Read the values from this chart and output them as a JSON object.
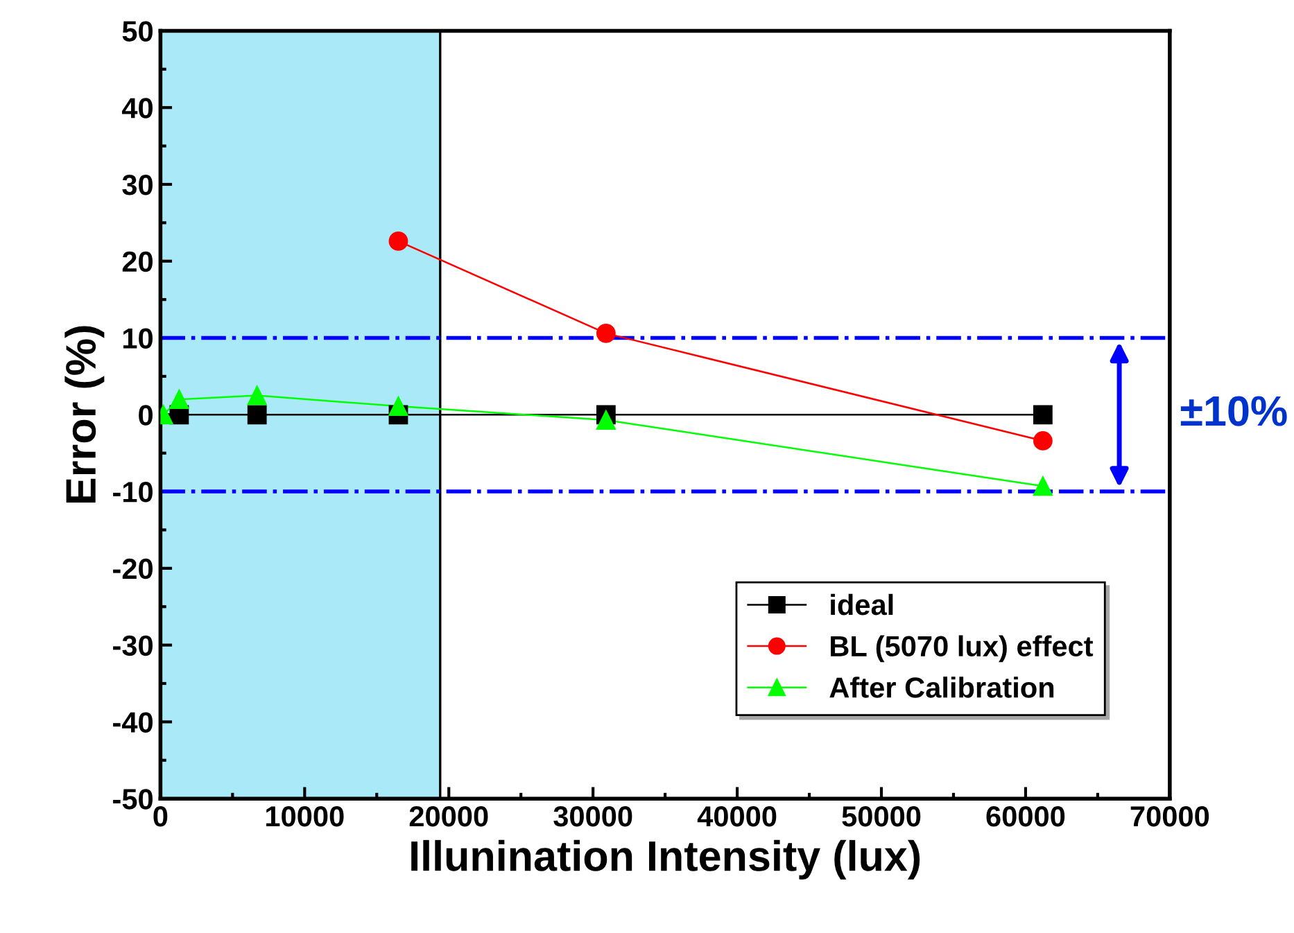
{
  "chart_data": {
    "type": "line",
    "xlabel": "Illunination Intensity (lux)",
    "ylabel": "Error (%)",
    "xlim": [
      0,
      70000
    ],
    "xticks": [
      0,
      10000,
      20000,
      30000,
      40000,
      50000,
      60000,
      70000
    ],
    "ylim": [
      -50,
      50
    ],
    "yticks": [
      -50,
      -40,
      -30,
      -20,
      -10,
      0,
      10,
      20,
      30,
      40,
      50
    ],
    "series": [
      {
        "name": "ideal",
        "color": "#000000",
        "marker": "square",
        "x": [
          1300,
          6700,
          16500,
          30900,
          61200
        ],
        "values": [
          0,
          0,
          0,
          0,
          0
        ]
      },
      {
        "name": "BL (5070 lux) effect",
        "color": "#ff0000",
        "marker": "circle",
        "x": [
          16500,
          30900,
          61200
        ],
        "values": [
          22.6,
          10.6,
          -3.4
        ]
      },
      {
        "name": "After Calibration",
        "color": "#00ff00",
        "marker": "triangle",
        "x": [
          200,
          1300,
          6700,
          16500,
          30900,
          61200
        ],
        "values": [
          0,
          2.0,
          2.5,
          1.1,
          -0.7,
          -9.3
        ]
      }
    ],
    "ref_lines": [
      {
        "axis": "y",
        "value": 10,
        "color": "#0000ff",
        "line_style": "dashdot"
      },
      {
        "axis": "y",
        "value": -10,
        "color": "#0000ff",
        "line_style": "dashdot"
      }
    ],
    "bands": [
      {
        "axis": "x",
        "from": 0,
        "to": 19400,
        "color": "#aaeaf8"
      }
    ],
    "annotations": [
      "±10%"
    ],
    "legend": "bottom right",
    "grid": false,
    "line_style": "solid"
  }
}
